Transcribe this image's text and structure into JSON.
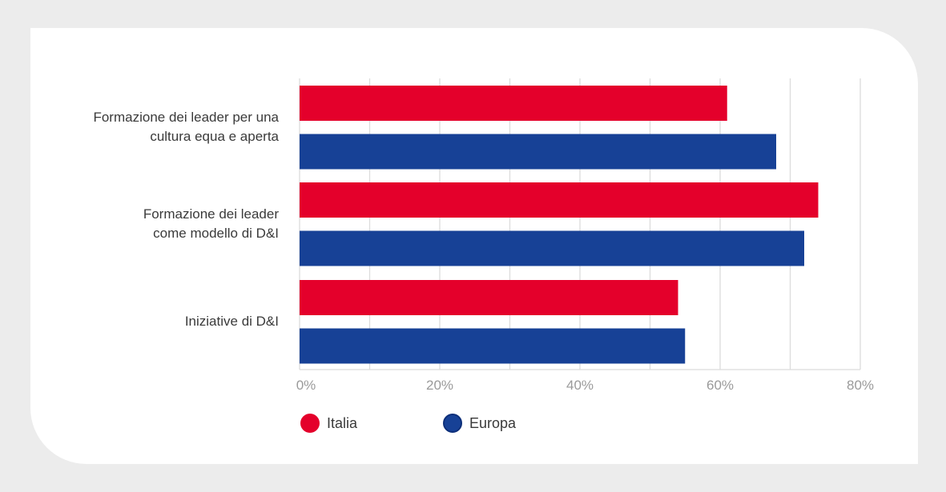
{
  "chart_data": {
    "type": "bar",
    "orientation": "horizontal",
    "categories": [
      "Formazione dei leader per una\ncultura equa e aperta",
      "Formazione dei leader\ncome modello di D&I",
      "Iniziative di D&I"
    ],
    "series": [
      {
        "name": "Italia",
        "color": "#e4002b",
        "values": [
          61,
          74,
          54
        ]
      },
      {
        "name": "Europa",
        "color": "#174196",
        "values": [
          68,
          72,
          55
        ]
      }
    ],
    "xlim": [
      0,
      80
    ],
    "xticks": [
      0,
      20,
      40,
      60,
      80
    ],
    "xtick_labels": [
      "0%",
      "20%",
      "40%",
      "60%",
      "80%"
    ],
    "grid": true,
    "legend_position": "bottom-left",
    "title": "",
    "xlabel": "",
    "ylabel": ""
  }
}
